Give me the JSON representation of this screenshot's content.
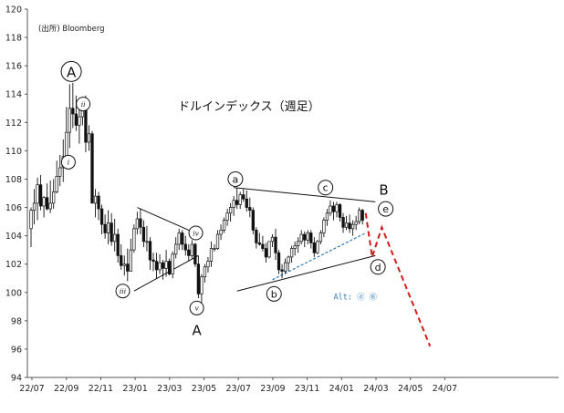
{
  "chart_data": {
    "type": "candlestick",
    "title": "ドルインデックス（週足）",
    "source": "(出所) Bloomberg",
    "ylim": [
      94,
      120
    ],
    "yticks": [
      94,
      96,
      98,
      100,
      102,
      104,
      106,
      108,
      110,
      112,
      114,
      116,
      118,
      120
    ],
    "xticks": [
      "22/07",
      "22/09",
      "22/11",
      "23/01",
      "23/03",
      "23/05",
      "23/07",
      "23/09",
      "23/11",
      "24/01",
      "24/03",
      "24/05",
      "24/07"
    ],
    "x_range_weeks": [
      0,
      152
    ],
    "candles": [
      [
        0,
        104.5,
        106.0,
        103.2,
        105.8
      ],
      [
        1,
        105.8,
        107.3,
        104.8,
        106.3
      ],
      [
        2,
        106.3,
        108.1,
        105.1,
        107.6
      ],
      [
        3,
        107.6,
        108.3,
        105.8,
        106.1
      ],
      [
        4,
        106.1,
        106.8,
        105.3,
        106.7
      ],
      [
        5,
        106.7,
        107.7,
        105.8,
        105.9
      ],
      [
        6,
        105.9,
        107.9,
        105.6,
        106.3
      ],
      [
        7,
        106.3,
        108.0,
        105.9,
        107.1
      ],
      [
        8,
        107.1,
        109.3,
        107.0,
        108.2
      ],
      [
        9,
        108.2,
        109.7,
        107.5,
        108.8
      ],
      [
        10,
        108.8,
        110.8,
        107.8,
        109.6
      ],
      [
        11,
        109.6,
        113.1,
        108.9,
        111.3
      ],
      [
        12,
        111.3,
        114.7,
        110.2,
        113.0
      ],
      [
        13,
        113.0,
        114.8,
        111.6,
        112.6
      ],
      [
        14,
        112.6,
        113.9,
        111.4,
        111.8
      ],
      [
        15,
        111.8,
        113.0,
        110.5,
        112.4
      ],
      [
        16,
        112.4,
        113.7,
        111.8,
        113.0
      ],
      [
        17,
        113.0,
        113.9,
        109.9,
        110.6
      ],
      [
        18,
        110.6,
        111.8,
        110.0,
        111.2
      ],
      [
        19,
        111.2,
        111.4,
        106.4,
        106.3
      ],
      [
        20,
        106.3,
        107.3,
        105.3,
        106.8
      ],
      [
        21,
        106.8,
        107.1,
        105.1,
        105.9
      ],
      [
        22,
        105.9,
        106.2,
        104.1,
        104.8
      ],
      [
        23,
        104.8,
        105.5,
        103.8,
        104.2
      ],
      [
        24,
        104.2,
        105.8,
        103.4,
        104.9
      ],
      [
        25,
        104.9,
        105.6,
        103.3,
        103.6
      ],
      [
        26,
        103.6,
        105.2,
        102.9,
        104.1
      ],
      [
        27,
        104.1,
        104.5,
        102.1,
        102.6
      ],
      [
        28,
        102.6,
        103.4,
        101.6,
        101.9
      ],
      [
        29,
        101.9,
        102.6,
        101.2,
        102.0
      ],
      [
        30,
        102.0,
        103.1,
        100.8,
        101.5
      ],
      [
        31,
        101.5,
        103.8,
        101.6,
        103.0
      ],
      [
        32,
        103.0,
        104.8,
        102.8,
        104.5
      ],
      [
        33,
        104.5,
        105.7,
        104.1,
        105.2
      ],
      [
        34,
        105.2,
        105.9,
        104.1,
        104.6
      ],
      [
        35,
        104.6,
        105.1,
        103.2,
        103.6
      ],
      [
        36,
        103.6,
        104.7,
        102.9,
        103.6
      ],
      [
        37,
        103.6,
        103.9,
        101.6,
        102.3
      ],
      [
        38,
        102.3,
        102.8,
        101.5,
        102.2
      ],
      [
        39,
        102.2,
        102.8,
        101.0,
        101.6
      ],
      [
        40,
        101.6,
        102.7,
        101.3,
        102.1
      ],
      [
        41,
        102.1,
        102.3,
        100.9,
        101.7
      ],
      [
        42,
        101.7,
        103.0,
        101.1,
        102.2
      ],
      [
        43,
        102.2,
        102.4,
        101.2,
        101.3
      ],
      [
        44,
        101.3,
        102.9,
        101.0,
        102.7
      ],
      [
        45,
        102.7,
        103.9,
        102.4,
        103.4
      ],
      [
        46,
        103.4,
        104.5,
        103.0,
        104.2
      ],
      [
        47,
        104.2,
        104.4,
        103.0,
        103.4
      ],
      [
        48,
        103.4,
        104.0,
        102.6,
        103.0
      ],
      [
        49,
        103.0,
        103.4,
        102.2,
        102.6
      ],
      [
        50,
        102.6,
        103.7,
        102.4,
        103.4
      ],
      [
        51,
        103.4,
        103.5,
        101.8,
        102.0
      ],
      [
        52,
        102.0,
        102.6,
        99.6,
        99.9
      ],
      [
        53,
        99.9,
        101.3,
        99.2,
        101.1
      ],
      [
        54,
        101.1,
        102.0,
        100.7,
        101.8
      ],
      [
        55,
        101.8,
        102.5,
        101.4,
        102.2
      ],
      [
        56,
        102.2,
        103.6,
        101.8,
        103.1
      ],
      [
        57,
        103.1,
        103.4,
        102.9,
        103.1
      ],
      [
        58,
        103.1,
        104.4,
        103.0,
        104.1
      ],
      [
        59,
        104.1,
        104.8,
        103.7,
        104.4
      ],
      [
        60,
        104.4,
        105.3,
        104.2,
        105.1
      ],
      [
        61,
        105.1,
        105.9,
        104.7,
        105.6
      ],
      [
        62,
        105.6,
        106.3,
        105.0,
        106.0
      ],
      [
        63,
        106.0,
        106.8,
        105.4,
        106.5
      ],
      [
        64,
        106.5,
        107.4,
        105.9,
        106.2
      ],
      [
        65,
        106.2,
        107.1,
        105.9,
        106.9
      ],
      [
        66,
        106.9,
        107.3,
        106.4,
        106.6
      ],
      [
        67,
        106.6,
        107.2,
        105.7,
        106.0
      ],
      [
        68,
        106.0,
        106.7,
        105.3,
        105.8
      ],
      [
        69,
        105.8,
        106.0,
        104.1,
        104.4
      ],
      [
        70,
        104.4,
        104.6,
        103.1,
        103.5
      ],
      [
        71,
        103.5,
        104.2,
        103.3,
        103.4
      ],
      [
        72,
        103.4,
        104.0,
        102.9,
        103.1
      ],
      [
        73,
        103.1,
        103.5,
        102.1,
        102.5
      ],
      [
        74,
        102.5,
        103.6,
        102.4,
        103.6
      ],
      [
        75,
        103.6,
        104.1,
        103.2,
        103.9
      ],
      [
        76,
        103.9,
        104.5,
        102.3,
        102.8
      ],
      [
        77,
        102.8,
        103.0,
        101.3,
        101.6
      ],
      [
        78,
        101.6,
        102.0,
        101.0,
        101.5
      ],
      [
        79,
        101.5,
        102.4,
        101.3,
        102.1
      ],
      [
        80,
        102.1,
        102.6,
        101.5,
        102.5
      ],
      [
        81,
        102.5,
        103.3,
        102.1,
        103.1
      ],
      [
        82,
        103.1,
        103.6,
        102.6,
        103.3
      ],
      [
        83,
        103.3,
        103.9,
        102.8,
        103.6
      ],
      [
        84,
        103.6,
        104.4,
        103.4,
        104.1
      ],
      [
        85,
        104.1,
        104.3,
        103.2,
        103.7
      ],
      [
        86,
        103.7,
        104.4,
        103.4,
        104.2
      ],
      [
        87,
        104.2,
        104.4,
        103.1,
        103.5
      ],
      [
        88,
        103.5,
        103.9,
        102.5,
        102.8
      ],
      [
        89,
        102.8,
        103.7,
        102.7,
        103.6
      ],
      [
        90,
        103.6,
        104.4,
        103.4,
        104.2
      ],
      [
        91,
        104.2,
        105.3,
        103.9,
        105.1
      ],
      [
        92,
        105.1,
        105.9,
        104.7,
        105.6
      ],
      [
        93,
        105.6,
        106.5,
        105.4,
        106.1
      ],
      [
        94,
        106.1,
        106.4,
        105.1,
        105.7
      ],
      [
        95,
        105.7,
        106.4,
        105.3,
        106.2
      ],
      [
        96,
        106.2,
        106.3,
        105.0,
        105.3
      ],
      [
        97,
        105.3,
        105.6,
        104.2,
        104.6
      ],
      [
        98,
        104.6,
        105.4,
        104.4,
        104.9
      ],
      [
        99,
        104.9,
        105.5,
        104.2,
        104.5
      ],
      [
        100,
        104.5,
        105.1,
        104.0,
        104.8
      ],
      [
        101,
        104.8,
        105.4,
        104.4,
        105.0
      ],
      [
        102,
        105.0,
        106.0,
        104.8,
        105.8
      ],
      [
        103,
        105.8,
        105.9,
        104.8,
        105.1
      ]
    ],
    "trendlines": [
      {
        "from": [
          33,
          106.0
        ],
        "to": [
          52,
          104.1
        ]
      },
      {
        "from": [
          32,
          100.1
        ],
        "to": [
          52,
          102.6
        ]
      },
      {
        "from": [
          63,
          107.4
        ],
        "to": [
          107,
          106.4
        ]
      },
      {
        "from": [
          64,
          100.1
        ],
        "to": [
          107,
          102.6
        ]
      }
    ],
    "support_dotted": {
      "from": [
        75,
        100.9
      ],
      "to": [
        104,
        104.2
      ]
    },
    "projection": [
      [
        104,
        105.6
      ],
      [
        106,
        102.5
      ],
      [
        109,
        104.6
      ],
      [
        124,
        96.2
      ]
    ],
    "wave_labels": [
      {
        "text": "A",
        "circled": true,
        "x": 12.5,
        "y": 115.6,
        "size": "big"
      },
      {
        "text": "ii",
        "circled": true,
        "x": 16.2,
        "y": 113.3,
        "size": "small"
      },
      {
        "text": "i",
        "circled": true,
        "x": 11.6,
        "y": 109.2,
        "size": "small"
      },
      {
        "text": "iii",
        "circled": true,
        "x": 28.5,
        "y": 100.1,
        "size": "small"
      },
      {
        "text": "iv",
        "circled": true,
        "x": 51.2,
        "y": 104.2,
        "size": "small"
      },
      {
        "text": "v",
        "circled": true,
        "x": 51.5,
        "y": 98.9,
        "size": "small"
      },
      {
        "text": "A",
        "circled": false,
        "x": 51.5,
        "y": 97.4,
        "size": "big"
      },
      {
        "text": "a",
        "circled": true,
        "x": 63.5,
        "y": 108.0,
        "size": "mid"
      },
      {
        "text": "b",
        "circled": true,
        "x": 75.5,
        "y": 99.9,
        "size": "mid"
      },
      {
        "text": "c",
        "circled": true,
        "x": 91.5,
        "y": 107.4,
        "size": "mid"
      },
      {
        "text": "d",
        "circled": true,
        "x": 107.8,
        "y": 101.8,
        "size": "mid"
      },
      {
        "text": "e",
        "circled": true,
        "x": 110.2,
        "y": 105.9,
        "size": "mid"
      },
      {
        "text": "B",
        "circled": false,
        "x": 109.6,
        "y": 107.3,
        "size": "big"
      }
    ],
    "annotation": {
      "text": "Alt: ⓓ  Ⓑ",
      "x": 94,
      "y": 99.5
    },
    "colors": {
      "candle": "#111111",
      "line": "#111111",
      "support": "#2a7ab8",
      "projection": "#d21c1c"
    }
  }
}
